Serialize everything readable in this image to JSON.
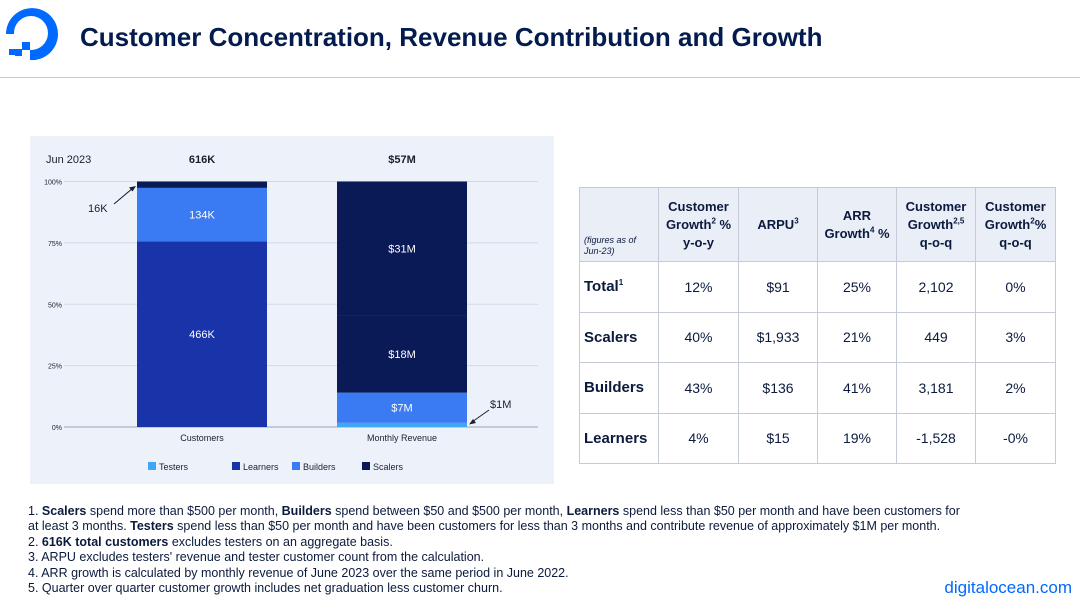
{
  "header": {
    "title": "Customer Concentration, Revenue Contribution and Growth",
    "logo_icon": "digitalocean-logo-icon",
    "brand_color": "#0069ff"
  },
  "chart_data": {
    "type": "bar",
    "stacked": true,
    "normalized_percent": true,
    "period_label": "Jun 2023",
    "categories": [
      "Customers",
      "Monthly Revenue"
    ],
    "category_totals": [
      "616K",
      "$57M"
    ],
    "y_ticks": [
      "0%",
      "25%",
      "50%",
      "75%",
      "100%"
    ],
    "ylim": [
      0,
      100
    ],
    "legend_position": "bottom",
    "series": [
      {
        "name": "Testers",
        "color": "#3fa7f5",
        "values": [
          0,
          1.7
        ],
        "labels": [
          "",
          ""
        ]
      },
      {
        "name": "Learners",
        "color": "#1933a8",
        "values": [
          75.6,
          0
        ],
        "labels": [
          "466K",
          ""
        ]
      },
      {
        "name": "Builders",
        "color": "#3a7af2",
        "values": [
          21.8,
          12.3
        ],
        "labels": [
          "134K",
          "$7M"
        ]
      },
      {
        "name": "Scalers",
        "color": "#0a1a56",
        "values": [
          2.6,
          31.6
        ],
        "labels": [
          "",
          "$18M"
        ]
      },
      {
        "name": "Scalers",
        "color": "#0a1a56",
        "values": [
          0,
          54.4
        ],
        "labels": [
          "",
          "$31M"
        ]
      }
    ],
    "callouts": [
      {
        "text": "16K",
        "category": "Customers"
      },
      {
        "text": "$1M",
        "category": "Monthly Revenue"
      }
    ],
    "legend": [
      {
        "name": "Testers",
        "color": "#3fa7f5"
      },
      {
        "name": "Learners",
        "color": "#1933a8"
      },
      {
        "name": "Builders",
        "color": "#3a7af2"
      },
      {
        "name": "Scalers",
        "color": "#0a1a56"
      }
    ]
  },
  "table": {
    "note": "(figures as of Jun-23)",
    "headers": [
      {
        "text": "Customer Growth",
        "sup": "2",
        "suffix": " % y-o-y"
      },
      {
        "text": "ARPU",
        "sup": "3",
        "suffix": ""
      },
      {
        "text": "ARR Growth",
        "sup": "4",
        "suffix": " %"
      },
      {
        "text": "Customer Growth",
        "sup": "2,5",
        "suffix": " q-o-q"
      },
      {
        "text": "Customer Growth",
        "sup": "2",
        "suffix": "% q-o-q"
      }
    ],
    "rows": [
      {
        "label": "Total",
        "sup": "1",
        "cells": [
          "12%",
          "$91",
          "25%",
          "2,102",
          "0%"
        ]
      },
      {
        "label": "Scalers",
        "sup": "",
        "cells": [
          "40%",
          "$1,933",
          "21%",
          "449",
          "3%"
        ]
      },
      {
        "label": "Builders",
        "sup": "",
        "cells": [
          "43%",
          "$136",
          "41%",
          "3,181",
          "2%"
        ]
      },
      {
        "label": "Learners",
        "sup": "",
        "cells": [
          "4%",
          "$15",
          "19%",
          "-1,528",
          "-0%"
        ]
      }
    ]
  },
  "footnotes": {
    "f1": {
      "num": "1. ",
      "scalers": "Scalers",
      "t1": " spend more than $500 per month, ",
      "builders": "Builders",
      "t2": " spend between $50 and $500 per month, ",
      "learners": "Learners",
      "t3": " spend less than $50 per month and have been customers for",
      "t4": "at least 3 months. ",
      "testers": "Testers",
      "t5": "  spend less than $50 per month and have been customers for less than 3 months and contribute revenue of approximately $1M per month."
    },
    "f2": {
      "num": "2. ",
      "bold": "616K total customers",
      "text": " excludes testers on an aggregate basis."
    },
    "f3": "3. ARPU excludes testers' revenue and tester customer count from the calculation.",
    "f4": "4. ARR growth is calculated by monthly revenue of June 2023 over the same period in June 2022.",
    "f5": "5. Quarter over quarter customer growth includes net graduation less customer churn."
  },
  "site": "digitalocean.com"
}
